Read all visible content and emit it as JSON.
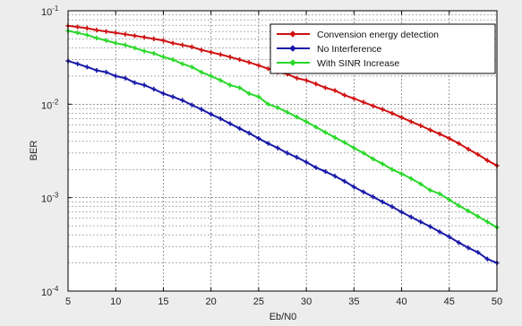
{
  "chart_data": {
    "type": "line",
    "title": "",
    "xlabel": "Eb/N0",
    "ylabel": "BER",
    "yscale": "log",
    "xlim": [
      5,
      50
    ],
    "ylim": [
      0.0001,
      0.1
    ],
    "grid": true,
    "legend_position": "top-right",
    "x_ticks": [
      "5",
      "10",
      "15",
      "20",
      "25",
      "30",
      "35",
      "40",
      "45",
      "50"
    ],
    "y_ticks": [
      {
        "base": "10",
        "exp": "-4",
        "value": 0.0001
      },
      {
        "base": "10",
        "exp": "-3",
        "value": 0.001
      },
      {
        "base": "10",
        "exp": "-2",
        "value": 0.01
      },
      {
        "base": "10",
        "exp": "-1",
        "value": 0.1
      }
    ],
    "x": [
      5,
      6,
      7,
      8,
      9,
      10,
      11,
      12,
      13,
      14,
      15,
      16,
      17,
      18,
      19,
      20,
      21,
      22,
      23,
      24,
      25,
      26,
      27,
      28,
      29,
      30,
      31,
      32,
      33,
      34,
      35,
      36,
      37,
      38,
      39,
      40,
      41,
      42,
      43,
      44,
      45,
      46,
      47,
      48,
      49,
      50
    ],
    "series": [
      {
        "name": "Conversion energy detection",
        "color": "#d01010",
        "values": [
          0.069,
          0.067,
          0.065,
          0.062,
          0.06,
          0.058,
          0.056,
          0.054,
          0.052,
          0.05,
          0.048,
          0.045,
          0.043,
          0.041,
          0.038,
          0.036,
          0.034,
          0.032,
          0.03,
          0.028,
          0.026,
          0.024,
          0.022,
          0.021,
          0.019,
          0.018,
          0.0165,
          0.015,
          0.014,
          0.0125,
          0.0115,
          0.0105,
          0.0096,
          0.0088,
          0.008,
          0.0072,
          0.0065,
          0.0059,
          0.0053,
          0.0048,
          0.0043,
          0.0038,
          0.0033,
          0.0029,
          0.0025,
          0.0022
        ]
      },
      {
        "name": "No Interference",
        "color": "#1818a8",
        "values": [
          0.029,
          0.027,
          0.025,
          0.023,
          0.022,
          0.02,
          0.019,
          0.017,
          0.016,
          0.0145,
          0.013,
          0.012,
          0.011,
          0.0098,
          0.0088,
          0.0078,
          0.007,
          0.0062,
          0.0055,
          0.0049,
          0.0043,
          0.0038,
          0.0034,
          0.003,
          0.0027,
          0.0024,
          0.0021,
          0.0019,
          0.0017,
          0.0015,
          0.0013,
          0.00115,
          0.00102,
          0.0009,
          0.0008,
          0.0007,
          0.00062,
          0.00055,
          0.00049,
          0.00043,
          0.00038,
          0.00033,
          0.00029,
          0.00026,
          0.00022,
          0.0002
        ]
      },
      {
        "name": "With SINR Increase",
        "color": "#28d828",
        "values": [
          0.061,
          0.058,
          0.055,
          0.051,
          0.048,
          0.045,
          0.043,
          0.04,
          0.037,
          0.035,
          0.032,
          0.03,
          0.027,
          0.025,
          0.022,
          0.02,
          0.018,
          0.016,
          0.015,
          0.013,
          0.012,
          0.01,
          0.0092,
          0.0082,
          0.0073,
          0.0065,
          0.0057,
          0.005,
          0.0044,
          0.0039,
          0.0034,
          0.003,
          0.0026,
          0.0023,
          0.002,
          0.0018,
          0.0016,
          0.0014,
          0.0012,
          0.0011,
          0.00095,
          0.00082,
          0.00072,
          0.00063,
          0.00055,
          0.00048
        ]
      }
    ],
    "legend": [
      "Convension energy detection",
      "No Interference",
      "With SINR Increase"
    ]
  }
}
